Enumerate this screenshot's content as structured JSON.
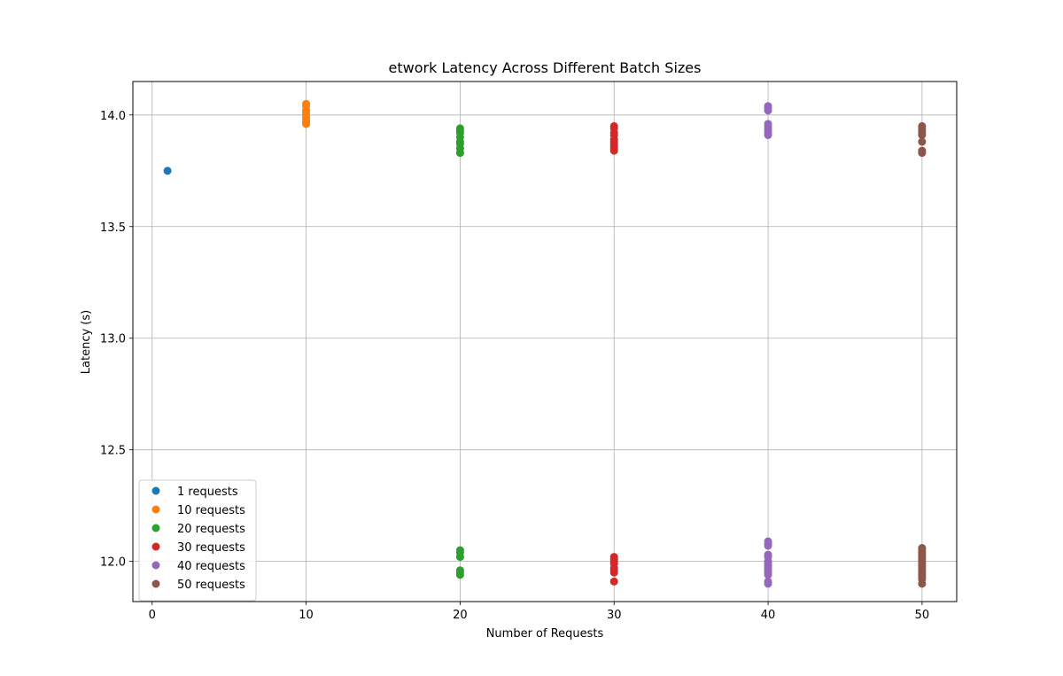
{
  "chart_data": {
    "type": "scatter",
    "title": "etwork Latency Across Different Batch Sizes",
    "xlabel": "Number of Requests",
    "ylabel": "Latency (s)",
    "xlim": [
      -1.25,
      52.25
    ],
    "ylim": [
      11.82,
      14.15
    ],
    "xticks": [
      0,
      10,
      20,
      30,
      40,
      50
    ],
    "xtick_labels": [
      "0",
      "10",
      "20",
      "30",
      "40",
      "50"
    ],
    "yticks": [
      12.0,
      12.5,
      13.0,
      13.5,
      14.0
    ],
    "ytick_labels": [
      "12.0",
      "12.5",
      "13.0",
      "13.5",
      "14.0"
    ],
    "grid": true,
    "legend_position": "lower-left",
    "series": [
      {
        "name": "1 requests",
        "color": "#1f77b4",
        "x": 1,
        "y": [
          13.75
        ]
      },
      {
        "name": "10 requests",
        "color": "#ff7f0e",
        "x": 10,
        "y": [
          14.05,
          14.04,
          14.02,
          14.01,
          14.0,
          13.99,
          13.98,
          13.97,
          13.96,
          13.96
        ]
      },
      {
        "name": "20 requests",
        "color": "#2ca02c",
        "x": 20,
        "y": [
          13.94,
          13.93,
          13.92,
          13.9,
          13.88,
          13.87,
          13.85,
          13.83,
          12.05,
          12.04,
          12.02,
          11.96,
          11.95,
          11.94
        ]
      },
      {
        "name": "30 requests",
        "color": "#d62728",
        "x": 30,
        "y": [
          13.95,
          13.94,
          13.92,
          13.91,
          13.89,
          13.88,
          13.87,
          13.86,
          13.85,
          13.84,
          12.02,
          12.01,
          12.0,
          11.99,
          11.97,
          11.96,
          11.95,
          11.91
        ]
      },
      {
        "name": "40 requests",
        "color": "#9467bd",
        "x": 40,
        "y": [
          14.04,
          14.03,
          14.02,
          13.96,
          13.95,
          13.94,
          13.93,
          13.92,
          13.91,
          12.09,
          12.08,
          12.07,
          12.03,
          12.02,
          12.0,
          11.99,
          11.98,
          11.97,
          11.96,
          11.95,
          11.94,
          11.91,
          11.9
        ]
      },
      {
        "name": "50 requests",
        "color": "#8c564b",
        "x": 50,
        "y": [
          13.95,
          13.94,
          13.93,
          13.92,
          13.91,
          13.88,
          13.84,
          13.83,
          12.06,
          12.05,
          12.04,
          12.03,
          12.02,
          12.01,
          12.0,
          11.99,
          11.98,
          11.97,
          11.96,
          11.95,
          11.94,
          11.93,
          11.92,
          11.9
        ]
      }
    ]
  }
}
